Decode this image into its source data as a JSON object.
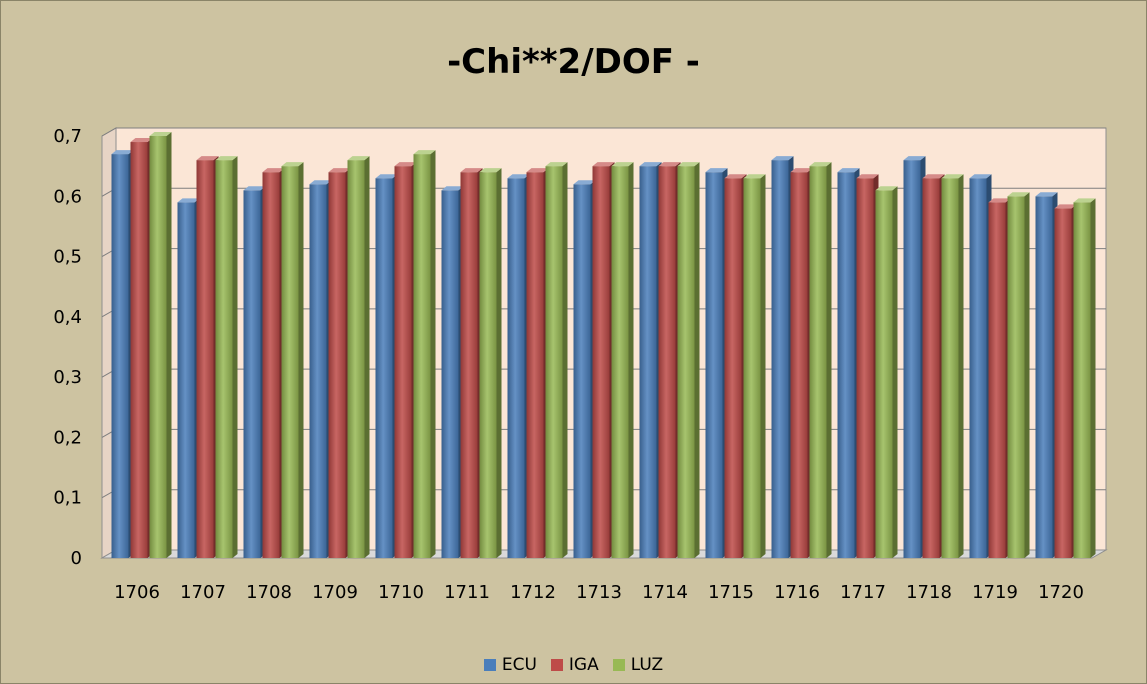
{
  "chart_data": {
    "type": "bar",
    "title": "-Chi**2/DOF -",
    "categories": [
      "1706",
      "1707",
      "1708",
      "1709",
      "1710",
      "1711",
      "1712",
      "1713",
      "1714",
      "1715",
      "1716",
      "1717",
      "1718",
      "1719",
      "1720"
    ],
    "series": [
      {
        "name": "ECU",
        "color": "#4a7ebb",
        "values": [
          0.67,
          0.59,
          0.61,
          0.62,
          0.63,
          0.61,
          0.63,
          0.62,
          0.65,
          0.64,
          0.66,
          0.64,
          0.66,
          0.63,
          0.6
        ]
      },
      {
        "name": "IGA",
        "color": "#be4b48",
        "values": [
          0.69,
          0.66,
          0.64,
          0.64,
          0.65,
          0.64,
          0.64,
          0.65,
          0.65,
          0.63,
          0.64,
          0.63,
          0.63,
          0.59,
          0.58
        ]
      },
      {
        "name": "LUZ",
        "color": "#98b954",
        "values": [
          0.7,
          0.66,
          0.65,
          0.66,
          0.67,
          0.64,
          0.65,
          0.65,
          0.65,
          0.63,
          0.65,
          0.61,
          0.63,
          0.6,
          0.59
        ]
      }
    ],
    "ylim": [
      0,
      0.7
    ],
    "yticks": [
      "0",
      "0,1",
      "0,2",
      "0,3",
      "0,4",
      "0,5",
      "0,6",
      "0,7"
    ],
    "grid": true,
    "legend_position": "bottom",
    "colors": {
      "background": "#cdc3a1",
      "plot_wall": "#fbe6d6"
    }
  }
}
